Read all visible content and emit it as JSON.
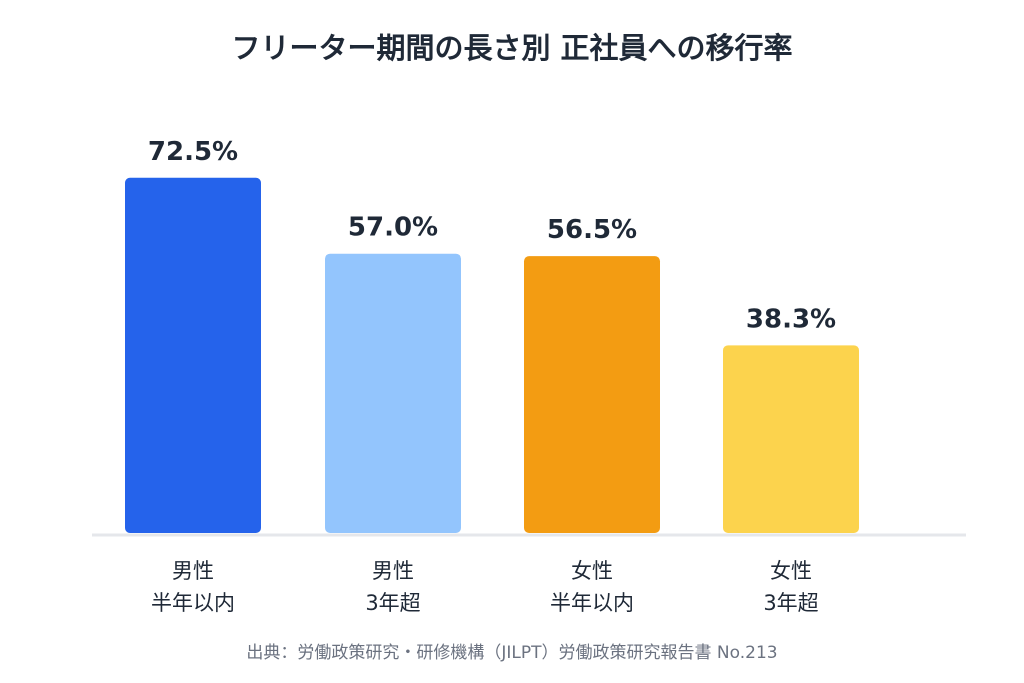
{
  "chart_data": {
    "type": "bar",
    "title": "フリーター期間の長さ別 正社員への移行率",
    "categories": [
      [
        "男性",
        "半年以内"
      ],
      [
        "男性",
        "3年超"
      ],
      [
        "女性",
        "半年以内"
      ],
      [
        "女性",
        "3年超"
      ]
    ],
    "values": [
      72.5,
      57.0,
      56.5,
      38.3
    ],
    "value_labels": [
      "72.5%",
      "57.0%",
      "56.5%",
      "38.3%"
    ],
    "colors": [
      "#2563eb",
      "#93c5fd",
      "#f39c12",
      "#fcd34d"
    ],
    "unit": "%",
    "ylim": [
      0,
      100
    ],
    "grid": false,
    "legend": "none",
    "source": "出典：労働政策研究・研修機構（JILPT）労働政策研究報告書 No.213"
  }
}
